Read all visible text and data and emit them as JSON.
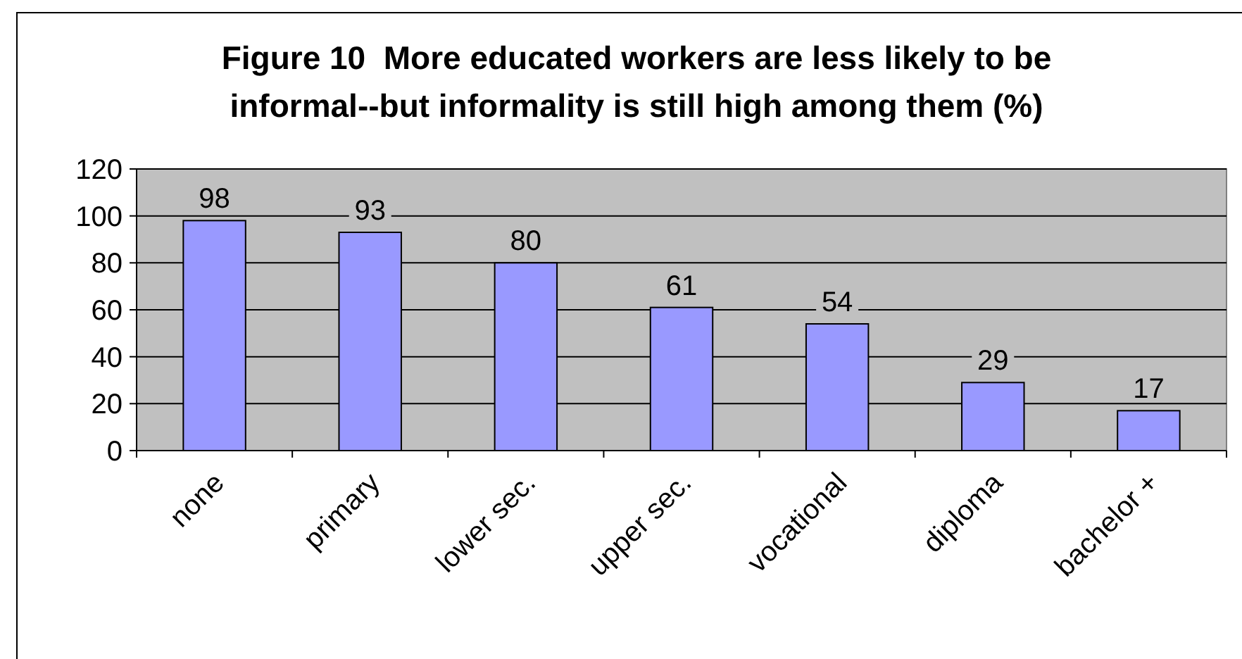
{
  "chart_data": {
    "type": "bar",
    "title": "Figure 10  More educated workers are less likely to be informal--but informality is still high among them (%)",
    "categories": [
      "none",
      "primary",
      "lower sec.",
      "upper sec.",
      "vocational",
      "diploma",
      "bachelor +"
    ],
    "values": [
      98,
      93,
      80,
      61,
      54,
      29,
      17
    ],
    "color": "#9999ff",
    "ylim": [
      0,
      120
    ],
    "yticks": [
      0,
      20,
      40,
      60,
      80,
      100,
      120
    ],
    "grid": "y",
    "data_labels": true
  }
}
